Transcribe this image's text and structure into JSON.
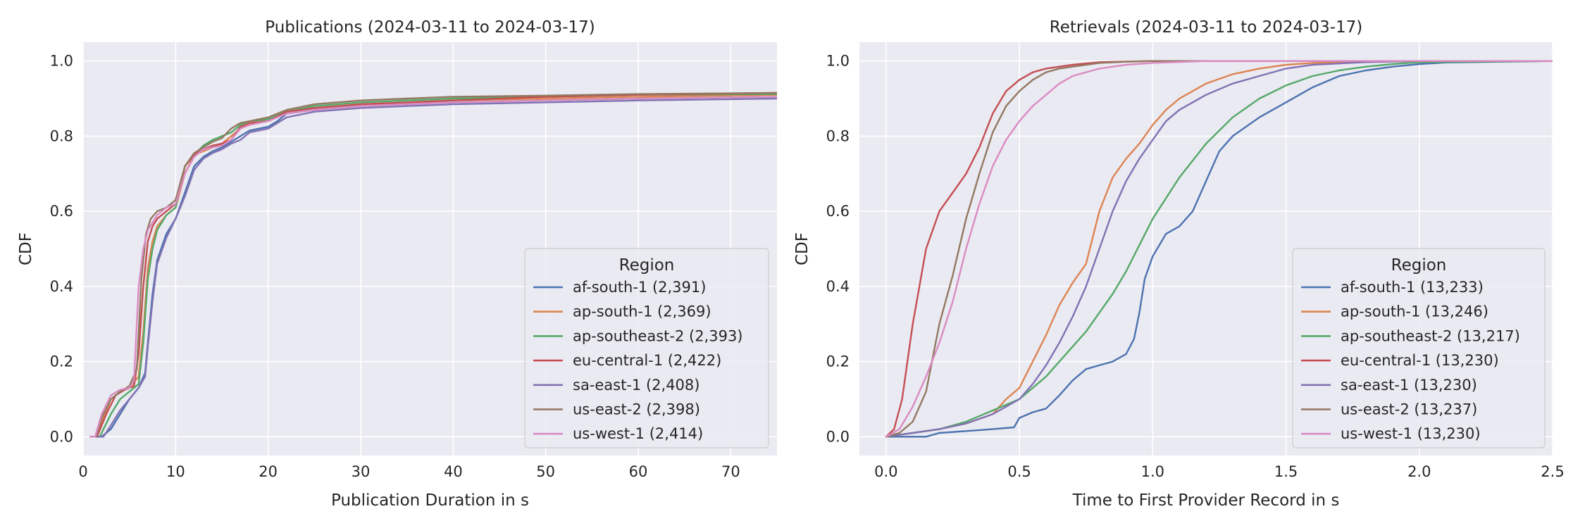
{
  "colors": [
    "#4c72b0",
    "#dd8452",
    "#55a868",
    "#c44e52",
    "#8172b3",
    "#937860",
    "#da8bc3"
  ],
  "chart_data": [
    {
      "type": "line",
      "title": "Publications (2024-03-11 to 2024-03-17)",
      "xlabel": "Publication Duration in s",
      "ylabel": "CDF",
      "xlim": [
        0,
        75
      ],
      "ylim": [
        -0.05,
        1.05
      ],
      "xticks": [
        0,
        10,
        20,
        30,
        40,
        50,
        60,
        70
      ],
      "xtick_labels": [
        "0",
        "10",
        "20",
        "30",
        "40",
        "50",
        "60",
        "70"
      ],
      "yticks": [
        0.0,
        0.2,
        0.4,
        0.6,
        0.8,
        1.0
      ],
      "ytick_labels": [
        "0.0",
        "0.2",
        "0.4",
        "0.6",
        "0.8",
        "1.0"
      ],
      "grid": true,
      "legend": {
        "title": "Region",
        "placement": "lower-right"
      },
      "series": [
        {
          "name": "af-south-1 (2,391)",
          "x": [
            0.8,
            2,
            3,
            4,
            5,
            6,
            6.7,
            7,
            7.5,
            8,
            9,
            10,
            11,
            12,
            13,
            14,
            15,
            16,
            17,
            18,
            20,
            21,
            22,
            25,
            30,
            35,
            40,
            50,
            60,
            75
          ],
          "y": [
            0,
            0,
            0.02,
            0.06,
            0.1,
            0.13,
            0.17,
            0.25,
            0.38,
            0.47,
            0.54,
            0.58,
            0.65,
            0.72,
            0.745,
            0.76,
            0.77,
            0.785,
            0.8,
            0.815,
            0.825,
            0.84,
            0.86,
            0.87,
            0.88,
            0.885,
            0.89,
            0.895,
            0.9,
            0.905
          ]
        },
        {
          "name": "ap-south-1 (2,369)",
          "x": [
            0.8,
            1.5,
            2,
            3,
            4,
            5,
            6,
            6.5,
            7,
            7.5,
            8,
            9,
            10,
            11,
            12,
            13,
            14,
            15,
            16,
            17,
            18,
            20,
            22,
            25,
            30,
            35,
            40,
            50,
            60,
            75
          ],
          "y": [
            0,
            0,
            0.04,
            0.1,
            0.12,
            0.13,
            0.16,
            0.28,
            0.45,
            0.52,
            0.56,
            0.59,
            0.61,
            0.7,
            0.75,
            0.76,
            0.77,
            0.78,
            0.8,
            0.82,
            0.83,
            0.845,
            0.865,
            0.875,
            0.885,
            0.89,
            0.895,
            0.9,
            0.905,
            0.91
          ]
        },
        {
          "name": "ap-southeast-2 (2,393)",
          "x": [
            0.8,
            1.8,
            3,
            4,
            5,
            6,
            6.5,
            7,
            7.5,
            8,
            9,
            10,
            11,
            12,
            13,
            14,
            15,
            16,
            17,
            18,
            20,
            22,
            25,
            30,
            35,
            40,
            50,
            60,
            75
          ],
          "y": [
            0,
            0,
            0.06,
            0.1,
            0.12,
            0.14,
            0.25,
            0.42,
            0.5,
            0.55,
            0.59,
            0.61,
            0.72,
            0.75,
            0.775,
            0.79,
            0.8,
            0.81,
            0.83,
            0.84,
            0.845,
            0.865,
            0.88,
            0.89,
            0.895,
            0.9,
            0.905,
            0.91,
            0.912
          ]
        },
        {
          "name": "eu-central-1 (2,422)",
          "x": [
            0.8,
            1.5,
            2.5,
            3.5,
            4.5,
            5.5,
            6,
            6.5,
            7,
            7.5,
            8,
            9,
            10,
            10.5,
            11,
            12,
            13,
            14,
            15,
            16,
            17,
            18,
            20,
            22,
            25,
            30,
            35,
            40,
            50,
            60,
            75
          ],
          "y": [
            0,
            0,
            0.06,
            0.11,
            0.125,
            0.135,
            0.22,
            0.4,
            0.52,
            0.56,
            0.58,
            0.6,
            0.62,
            0.66,
            0.72,
            0.75,
            0.765,
            0.775,
            0.78,
            0.79,
            0.825,
            0.835,
            0.84,
            0.865,
            0.875,
            0.885,
            0.89,
            0.895,
            0.905,
            0.91,
            0.915
          ]
        },
        {
          "name": "sa-east-1 (2,408)",
          "x": [
            0.8,
            2.2,
            3,
            4,
            5,
            6,
            6.7,
            7,
            7.5,
            8,
            9,
            10,
            11,
            12,
            13,
            14,
            15,
            16,
            17,
            18,
            20,
            21,
            22,
            25,
            30,
            35,
            40,
            50,
            60,
            75
          ],
          "y": [
            0,
            0,
            0.03,
            0.07,
            0.1,
            0.13,
            0.16,
            0.24,
            0.36,
            0.46,
            0.53,
            0.58,
            0.64,
            0.71,
            0.74,
            0.755,
            0.765,
            0.78,
            0.79,
            0.81,
            0.82,
            0.835,
            0.85,
            0.865,
            0.875,
            0.88,
            0.885,
            0.89,
            0.895,
            0.9
          ]
        },
        {
          "name": "us-east-2 (2,398)",
          "x": [
            0.8,
            1.4,
            2,
            3,
            4,
            5,
            5.8,
            6.3,
            6.8,
            7.3,
            8,
            9,
            10,
            11,
            12,
            13,
            14,
            15,
            16,
            17,
            18,
            20,
            22,
            25,
            30,
            35,
            40,
            50,
            60,
            75
          ],
          "y": [
            0,
            0,
            0.05,
            0.1,
            0.12,
            0.135,
            0.18,
            0.42,
            0.54,
            0.58,
            0.6,
            0.61,
            0.63,
            0.72,
            0.755,
            0.77,
            0.785,
            0.795,
            0.82,
            0.835,
            0.84,
            0.85,
            0.87,
            0.885,
            0.895,
            0.9,
            0.905,
            0.908,
            0.912,
            0.915
          ]
        },
        {
          "name": "us-west-1 (2,414)",
          "x": [
            0.8,
            1.3,
            2,
            3,
            4,
            5,
            5.5,
            6,
            6.5,
            7,
            7.5,
            8,
            9,
            10,
            11,
            12,
            13,
            14,
            15,
            16,
            17,
            18,
            20,
            22,
            25,
            30,
            35,
            40,
            50,
            60,
            75
          ],
          "y": [
            0,
            0,
            0.06,
            0.11,
            0.125,
            0.13,
            0.15,
            0.4,
            0.5,
            0.55,
            0.57,
            0.59,
            0.61,
            0.62,
            0.7,
            0.745,
            0.765,
            0.77,
            0.775,
            0.79,
            0.82,
            0.83,
            0.84,
            0.86,
            0.87,
            0.88,
            0.885,
            0.89,
            0.895,
            0.9,
            0.905
          ]
        }
      ]
    },
    {
      "type": "line",
      "title": "Retrievals (2024-03-11 to 2024-03-17)",
      "xlabel": "Time to First Provider Record in s",
      "ylabel": "CDF",
      "xlim": [
        -0.1,
        2.5
      ],
      "ylim": [
        -0.05,
        1.05
      ],
      "xticks": [
        0,
        0.5,
        1.0,
        1.5,
        2.0,
        2.5
      ],
      "xtick_labels": [
        "0.0",
        "0.5",
        "1.0",
        "1.5",
        "2.0",
        "2.5"
      ],
      "yticks": [
        0.0,
        0.2,
        0.4,
        0.6,
        0.8,
        1.0
      ],
      "ytick_labels": [
        "0.0",
        "0.2",
        "0.4",
        "0.6",
        "0.8",
        "1.0"
      ],
      "grid": true,
      "legend": {
        "title": "Region",
        "placement": "lower-right"
      },
      "series": [
        {
          "name": "af-south-1 (13,233)",
          "x": [
            0,
            0.15,
            0.2,
            0.3,
            0.4,
            0.48,
            0.5,
            0.55,
            0.6,
            0.65,
            0.7,
            0.75,
            0.8,
            0.85,
            0.9,
            0.93,
            0.95,
            0.97,
            1.0,
            1.05,
            1.1,
            1.15,
            1.2,
            1.25,
            1.3,
            1.4,
            1.5,
            1.6,
            1.7,
            1.8,
            1.9,
            2.0,
            2.1,
            2.5
          ],
          "y": [
            0,
            0,
            0.01,
            0.015,
            0.02,
            0.025,
            0.05,
            0.065,
            0.075,
            0.11,
            0.15,
            0.18,
            0.19,
            0.2,
            0.22,
            0.26,
            0.33,
            0.42,
            0.48,
            0.54,
            0.56,
            0.6,
            0.68,
            0.76,
            0.8,
            0.85,
            0.89,
            0.93,
            0.96,
            0.975,
            0.985,
            0.992,
            0.996,
            1.0
          ]
        },
        {
          "name": "ap-south-1 (13,246)",
          "x": [
            0,
            0.1,
            0.2,
            0.3,
            0.4,
            0.45,
            0.5,
            0.55,
            0.6,
            0.65,
            0.7,
            0.75,
            0.8,
            0.85,
            0.9,
            0.95,
            1.0,
            1.05,
            1.1,
            1.15,
            1.2,
            1.3,
            1.4,
            1.5,
            1.6,
            1.8,
            2.0,
            2.5
          ],
          "y": [
            0,
            0.01,
            0.02,
            0.035,
            0.06,
            0.1,
            0.13,
            0.2,
            0.27,
            0.35,
            0.41,
            0.46,
            0.6,
            0.69,
            0.74,
            0.78,
            0.83,
            0.87,
            0.9,
            0.92,
            0.94,
            0.965,
            0.98,
            0.99,
            0.995,
            0.998,
            1.0,
            1.0
          ]
        },
        {
          "name": "ap-southeast-2 (13,217)",
          "x": [
            0,
            0.1,
            0.2,
            0.3,
            0.4,
            0.5,
            0.55,
            0.6,
            0.65,
            0.7,
            0.75,
            0.8,
            0.85,
            0.9,
            0.95,
            1.0,
            1.1,
            1.2,
            1.3,
            1.4,
            1.5,
            1.6,
            1.7,
            1.8,
            1.9,
            2.0,
            2.5
          ],
          "y": [
            0,
            0.01,
            0.02,
            0.04,
            0.07,
            0.1,
            0.13,
            0.16,
            0.2,
            0.24,
            0.28,
            0.33,
            0.38,
            0.44,
            0.51,
            0.58,
            0.69,
            0.78,
            0.85,
            0.9,
            0.935,
            0.96,
            0.975,
            0.985,
            0.992,
            0.997,
            1.0
          ]
        },
        {
          "name": "eu-central-1 (13,230)",
          "x": [
            0,
            0.03,
            0.06,
            0.1,
            0.15,
            0.2,
            0.25,
            0.3,
            0.35,
            0.4,
            0.45,
            0.5,
            0.55,
            0.6,
            0.7,
            0.8,
            1.0,
            2.5
          ],
          "y": [
            0,
            0.02,
            0.1,
            0.3,
            0.5,
            0.6,
            0.65,
            0.7,
            0.77,
            0.86,
            0.92,
            0.95,
            0.97,
            0.98,
            0.99,
            0.997,
            1.0,
            1.0
          ]
        },
        {
          "name": "sa-east-1 (13,230)",
          "x": [
            0,
            0.1,
            0.2,
            0.3,
            0.4,
            0.5,
            0.55,
            0.6,
            0.65,
            0.7,
            0.75,
            0.8,
            0.85,
            0.9,
            0.95,
            1.0,
            1.05,
            1.1,
            1.2,
            1.3,
            1.4,
            1.5,
            1.6,
            1.8,
            2.0,
            2.5
          ],
          "y": [
            0,
            0.01,
            0.02,
            0.035,
            0.06,
            0.1,
            0.14,
            0.19,
            0.25,
            0.32,
            0.4,
            0.5,
            0.6,
            0.68,
            0.74,
            0.79,
            0.84,
            0.87,
            0.91,
            0.94,
            0.96,
            0.98,
            0.99,
            0.997,
            1.0,
            1.0
          ]
        },
        {
          "name": "us-east-2 (13,237)",
          "x": [
            0,
            0.05,
            0.1,
            0.15,
            0.2,
            0.25,
            0.3,
            0.35,
            0.4,
            0.45,
            0.5,
            0.55,
            0.6,
            0.65,
            0.7,
            0.8,
            0.9,
            1.0,
            2.5
          ],
          "y": [
            0,
            0.01,
            0.04,
            0.12,
            0.3,
            0.43,
            0.58,
            0.7,
            0.81,
            0.88,
            0.92,
            0.95,
            0.97,
            0.98,
            0.985,
            0.995,
            0.998,
            1.0,
            1.0
          ]
        },
        {
          "name": "us-west-1 (13,230)",
          "x": [
            0,
            0.05,
            0.1,
            0.15,
            0.2,
            0.25,
            0.3,
            0.35,
            0.4,
            0.45,
            0.5,
            0.55,
            0.6,
            0.65,
            0.7,
            0.8,
            0.9,
            1.0,
            1.2,
            2.5
          ],
          "y": [
            0,
            0.02,
            0.08,
            0.16,
            0.25,
            0.36,
            0.5,
            0.62,
            0.72,
            0.79,
            0.84,
            0.88,
            0.91,
            0.94,
            0.96,
            0.98,
            0.99,
            0.995,
            1.0,
            1.0
          ]
        }
      ]
    }
  ]
}
